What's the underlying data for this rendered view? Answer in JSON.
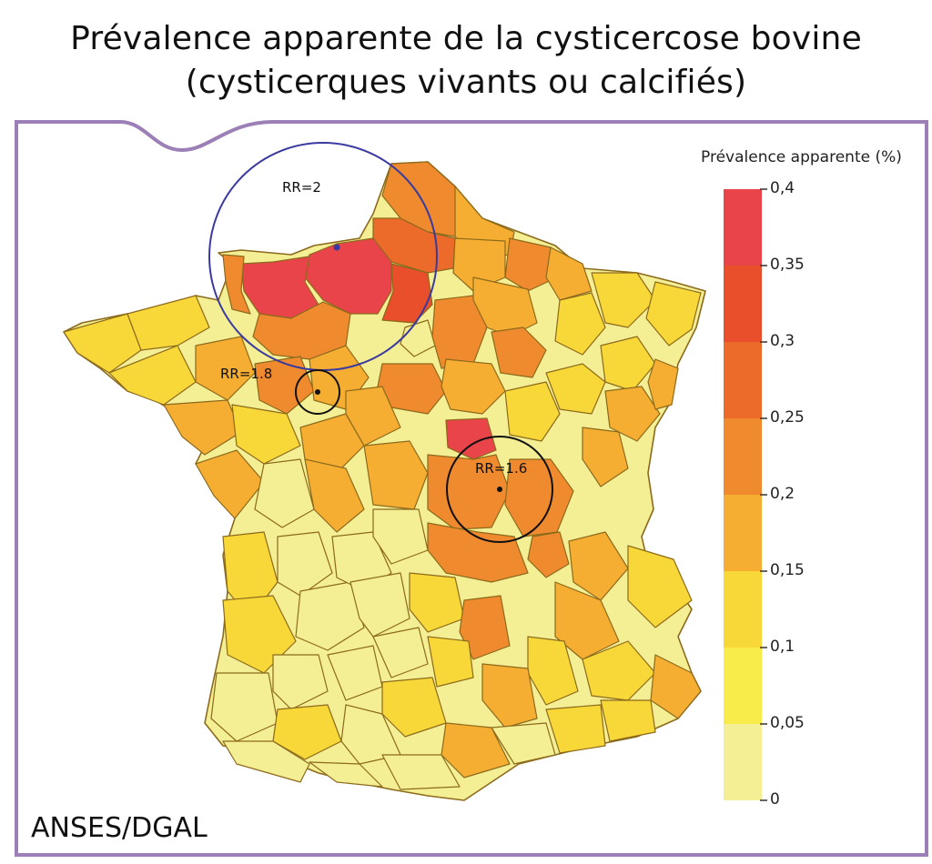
{
  "title_line1": "Prévalence apparente de la cysticercose bovine",
  "title_line2": "(cysticerques vivants ou calcifiés)",
  "source": "ANSES/DGAL",
  "legend": {
    "title": "Prévalence apparente (%)",
    "ticks": [
      "0,4",
      "0,35",
      "0,3",
      "0,25",
      "0,2",
      "0,15",
      "0,1",
      "0,05",
      "0"
    ],
    "colors": [
      "#e8444a",
      "#e84f2a",
      "#ec6a2a",
      "#f08a2e",
      "#f6ae32",
      "#f8d838",
      "#f7ec4a",
      "#f4ef94"
    ]
  },
  "clusters": [
    {
      "label": "RR=2",
      "region": "Normandie"
    },
    {
      "label": "RR=1.8",
      "region": "Mayenne / Sarthe"
    },
    {
      "label": "RR=1.6",
      "region": "Nièvre"
    }
  ],
  "colors": {
    "frame": "#9b7fb6",
    "cluster_large": "#3a3aa0",
    "cluster_small": "#111111",
    "department_border": "#8c6a1c"
  }
}
